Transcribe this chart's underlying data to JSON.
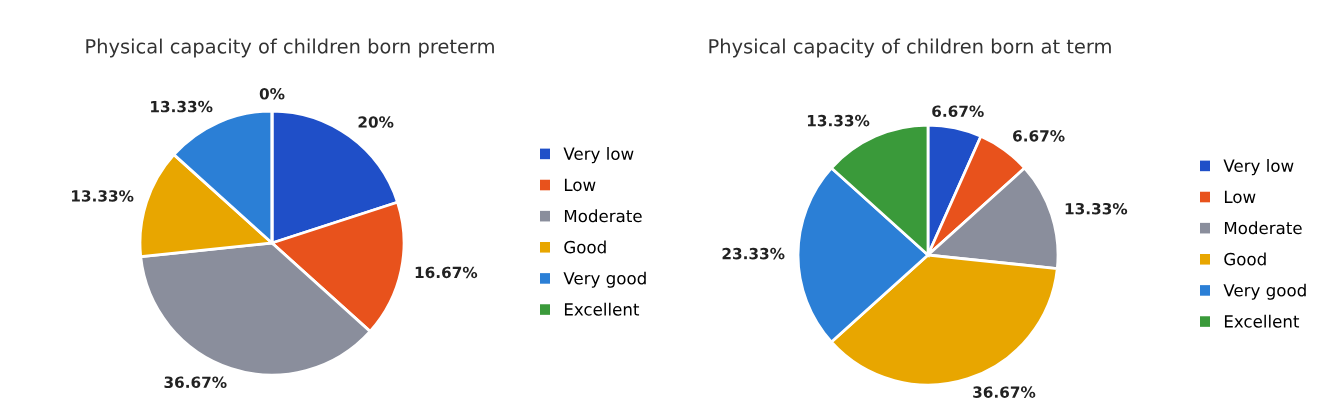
{
  "chart_data": [
    {
      "type": "pie",
      "title": "Physical capacity of children born preterm",
      "categories": [
        "Very low",
        "Low",
        "Moderate",
        "Good",
        "Very good",
        "Excellent"
      ],
      "values": [
        20,
        16.67,
        36.67,
        13.33,
        13.33,
        0
      ],
      "value_labels": [
        "20%",
        "16.67%",
        "36.67%",
        "13.33%",
        "13.33%",
        "0%"
      ],
      "colors": [
        "#1f4fc8",
        "#e8521c",
        "#8a8e9c",
        "#e8a600",
        "#2b7fd6",
        "#3a9a3a"
      ],
      "legend": "right"
    },
    {
      "type": "pie",
      "title": "Physical capacity of children born at term",
      "categories": [
        "Very low",
        "Low",
        "Moderate",
        "Good",
        "Very good",
        "Excellent"
      ],
      "values": [
        6.67,
        6.67,
        13.33,
        36.67,
        23.33,
        13.33
      ],
      "value_labels": [
        "6.67%",
        "6.67%",
        "13.33%",
        "36.67%",
        "23.33%",
        "13.33%"
      ],
      "colors": [
        "#1f4fc8",
        "#e8521c",
        "#8a8e9c",
        "#e8a600",
        "#2b7fd6",
        "#3a9a3a"
      ],
      "legend": "right"
    }
  ]
}
